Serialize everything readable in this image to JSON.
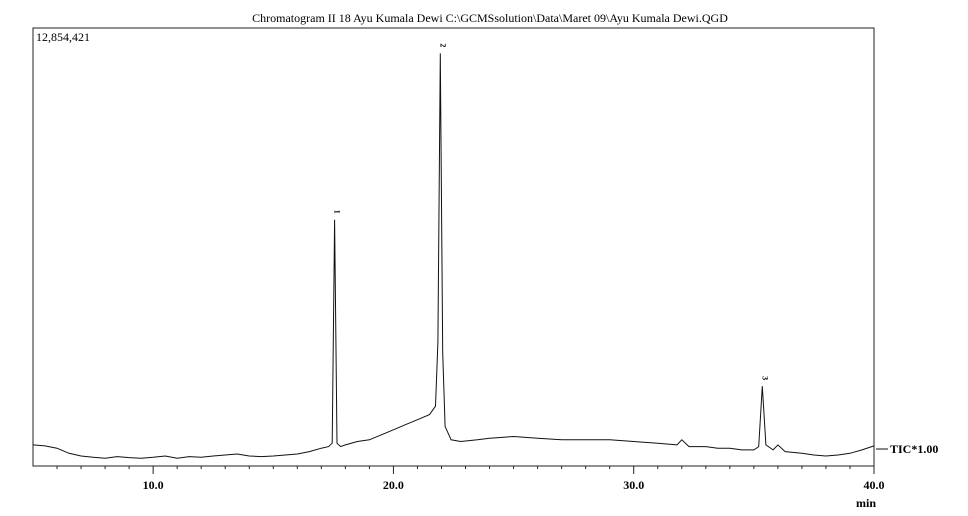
{
  "chart_data": {
    "type": "line",
    "title": "Chromatogram II 18 Ayu Kumala Dewi C:\\GCMSsolution\\Data\\Maret 09\\Ayu Kumala Dewi.QGD",
    "y_max_label": "12,854,421",
    "y_max": 12854421,
    "xlabel": "min",
    "ylabel": "",
    "xlim": [
      5.0,
      40.0
    ],
    "ylim": [
      0,
      12854421
    ],
    "x_ticks": [
      10.0,
      20.0,
      30.0,
      40.0
    ],
    "x_tick_labels": [
      "10.0",
      "20.0",
      "30.0",
      "40.0"
    ],
    "grid": false,
    "series": [
      {
        "name": "TIC*1.00",
        "color": "#111111",
        "points": [
          [
            5.0,
            0.45
          ],
          [
            5.5,
            0.42
          ],
          [
            6.0,
            0.35
          ],
          [
            6.5,
            0.2
          ],
          [
            7.0,
            0.12
          ],
          [
            7.5,
            0.08
          ],
          [
            8.0,
            0.05
          ],
          [
            8.5,
            0.1
          ],
          [
            9.0,
            0.07
          ],
          [
            9.5,
            0.05
          ],
          [
            10.0,
            0.08
          ],
          [
            10.5,
            0.12
          ],
          [
            11.0,
            0.05
          ],
          [
            11.5,
            0.1
          ],
          [
            12.0,
            0.08
          ],
          [
            12.5,
            0.12
          ],
          [
            13.0,
            0.15
          ],
          [
            13.5,
            0.18
          ],
          [
            14.0,
            0.12
          ],
          [
            14.5,
            0.1
          ],
          [
            15.0,
            0.12
          ],
          [
            15.5,
            0.15
          ],
          [
            16.0,
            0.18
          ],
          [
            16.5,
            0.25
          ],
          [
            17.0,
            0.35
          ],
          [
            17.3,
            0.4
          ],
          [
            17.45,
            0.5
          ],
          [
            17.55,
            7.15
          ],
          [
            17.65,
            0.5
          ],
          [
            17.8,
            0.4
          ],
          [
            18.0,
            0.45
          ],
          [
            18.5,
            0.55
          ],
          [
            19.0,
            0.6
          ],
          [
            19.5,
            0.75
          ],
          [
            20.0,
            0.9
          ],
          [
            20.5,
            1.05
          ],
          [
            21.0,
            1.2
          ],
          [
            21.5,
            1.35
          ],
          [
            21.75,
            1.6
          ],
          [
            21.85,
            3.5
          ],
          [
            21.95,
            12.1
          ],
          [
            22.05,
            3.2
          ],
          [
            22.15,
            1.0
          ],
          [
            22.4,
            0.6
          ],
          [
            22.8,
            0.55
          ],
          [
            23.5,
            0.6
          ],
          [
            24.0,
            0.65
          ],
          [
            25.0,
            0.7
          ],
          [
            26.0,
            0.65
          ],
          [
            27.0,
            0.6
          ],
          [
            28.0,
            0.6
          ],
          [
            29.0,
            0.6
          ],
          [
            30.0,
            0.55
          ],
          [
            31.0,
            0.5
          ],
          [
            31.8,
            0.45
          ],
          [
            32.0,
            0.6
          ],
          [
            32.3,
            0.4
          ],
          [
            33.0,
            0.4
          ],
          [
            33.5,
            0.35
          ],
          [
            34.0,
            0.35
          ],
          [
            34.5,
            0.3
          ],
          [
            35.0,
            0.3
          ],
          [
            35.2,
            0.4
          ],
          [
            35.35,
            2.2
          ],
          [
            35.5,
            0.45
          ],
          [
            35.8,
            0.3
          ],
          [
            36.0,
            0.45
          ],
          [
            36.3,
            0.25
          ],
          [
            37.0,
            0.2
          ],
          [
            37.5,
            0.15
          ],
          [
            38.0,
            0.12
          ],
          [
            38.5,
            0.15
          ],
          [
            39.0,
            0.2
          ],
          [
            39.5,
            0.3
          ],
          [
            40.0,
            0.42
          ]
        ]
      }
    ],
    "y_unit_note": "y values of points are in millions of counts",
    "peak_labels": [
      {
        "text": "1",
        "x": 17.55,
        "y": 7.15
      },
      {
        "text": "2",
        "x": 21.95,
        "y": 12.1
      },
      {
        "text": "3",
        "x": 35.35,
        "y": 2.2
      }
    ]
  }
}
